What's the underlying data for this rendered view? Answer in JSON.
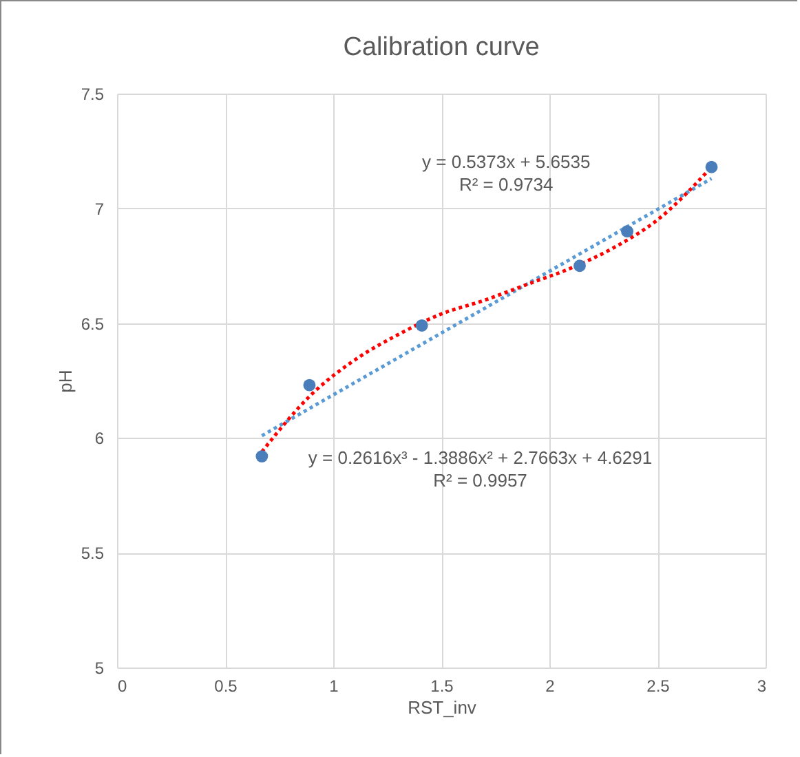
{
  "chart_data": {
    "type": "scatter",
    "title": "Calibration curve",
    "xlabel": "RST_inv",
    "ylabel": "pH",
    "xlim": [
      0,
      3
    ],
    "xticks": [
      0,
      0.5,
      1,
      1.5,
      2,
      2.5,
      3
    ],
    "ylim": [
      5,
      7.5
    ],
    "yticks": [
      5,
      5.5,
      6,
      6.5,
      7,
      7.5
    ],
    "grid": true,
    "series": [
      {
        "type": "scatter",
        "color": "#4a7ebb",
        "marker": "circle",
        "x": [
          0.67,
          0.89,
          1.41,
          2.14,
          2.36,
          2.75
        ],
        "values": [
          5.92,
          6.23,
          6.49,
          6.75,
          6.9,
          7.18
        ]
      },
      {
        "type": "line",
        "color": "#5b9bd5",
        "line_style": "dotted",
        "marker": "none",
        "x": [
          0.67,
          2.75
        ],
        "values": [
          6.01,
          7.13
        ]
      },
      {
        "type": "line",
        "color": "#ff0000",
        "line_style": "dotted",
        "marker": "none",
        "x": [
          0.67,
          0.9,
          1.1,
          1.3,
          1.5,
          1.7,
          1.9,
          2.1,
          2.3,
          2.5,
          2.75
        ],
        "values": [
          5.94,
          6.19,
          6.34,
          6.45,
          6.54,
          6.6,
          6.67,
          6.74,
          6.83,
          6.95,
          7.18
        ]
      }
    ],
    "annotations": [
      "y = 0.5373x + 5.6535",
      "R² = 0.9734",
      "y = 0.2616x³ - 1.3886x² + 2.7663x + 4.6291",
      "R² = 0.9957"
    ]
  }
}
